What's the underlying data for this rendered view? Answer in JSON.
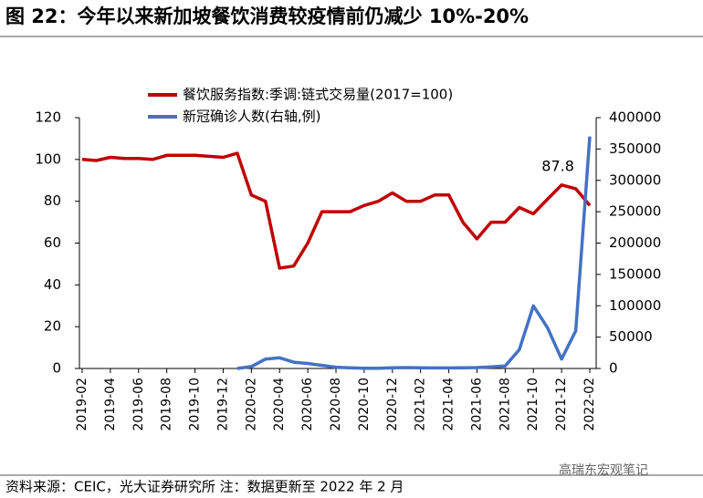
{
  "chart_data": {
    "type": "line",
    "title": "图 22：今年以来新加坡餐饮消费较疫情前仍减少 10%-20%",
    "source": "资料来源：CEIC，光大证券研究所  注：数据更新至 2022 年 2 月",
    "watermark": "高瑞东宏观笔记",
    "categories": [
      "2019-02",
      null,
      "2019-04",
      null,
      "2019-06",
      null,
      "2019-08",
      null,
      "2019-10",
      null,
      "2019-12",
      null,
      "2020-02",
      null,
      "2020-04",
      null,
      "2020-06",
      null,
      "2020-08",
      null,
      "2020-10",
      null,
      "2020-12",
      null,
      "2021-02",
      null,
      "2021-04",
      null,
      "2021-06",
      null,
      "2021-08",
      null,
      "2021-10",
      null,
      "2021-12",
      null,
      "2022-02"
    ],
    "series": [
      {
        "name": "餐饮服务指数:季调:链式交易量(2017=100)",
        "color": "#c00000",
        "values": [
          100,
          99.5,
          101,
          100.5,
          100.5,
          100,
          102,
          102,
          102,
          101.5,
          101,
          103,
          83,
          80,
          48,
          49,
          60,
          75,
          75,
          75,
          78,
          80,
          84,
          80,
          80,
          83,
          83,
          70,
          62,
          70,
          70,
          77,
          74,
          81,
          87.8,
          86,
          78
        ],
        "value_labels": [
          null,
          null,
          null,
          null,
          null,
          null,
          null,
          null,
          null,
          null,
          null,
          null,
          null,
          null,
          null,
          null,
          null,
          null,
          null,
          null,
          null,
          null,
          null,
          null,
          null,
          null,
          null,
          null,
          null,
          null,
          null,
          null,
          null,
          null,
          "87.8",
          null,
          null
        ]
      },
      {
        "name": "新冠确诊人数(右轴,例)",
        "color": "#4472c4",
        "axis": "y2",
        "values": [
          null,
          null,
          null,
          null,
          null,
          null,
          null,
          null,
          null,
          null,
          null,
          0,
          3000,
          15000,
          17000,
          10000,
          8000,
          5000,
          2000,
          1000,
          500,
          500,
          1000,
          1500,
          1000,
          800,
          800,
          1000,
          1500,
          2500,
          4000,
          30000,
          100000,
          65000,
          15000,
          60000,
          370000
        ]
      }
    ],
    "ylim": [
      0,
      120
    ],
    "yticks": [
      0,
      20,
      40,
      60,
      80,
      100,
      120
    ],
    "y2lim": [
      0,
      400000
    ],
    "y2ticks": [
      0,
      50000,
      100000,
      150000,
      200000,
      250000,
      300000,
      350000,
      400000
    ],
    "grid": false,
    "legend": "top"
  }
}
